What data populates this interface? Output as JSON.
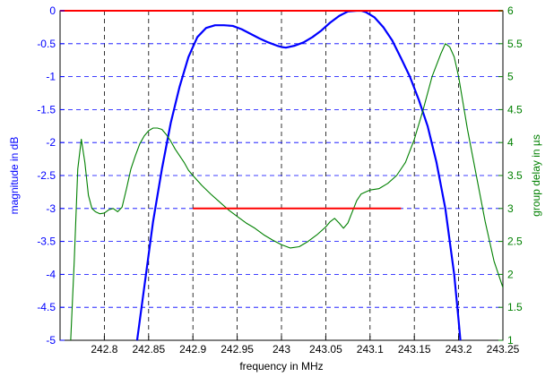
{
  "chart_data": {
    "type": "line",
    "title": "",
    "xlabel": "frequency in MHz",
    "ylabel_left": "magnitude in dB",
    "ylabel_right": "group delay in µs",
    "xlim": [
      242.75,
      243.25
    ],
    "ylim_left": [
      -5,
      0
    ],
    "ylim_right": [
      1,
      6
    ],
    "x_ticks": [
      242.8,
      242.85,
      242.9,
      242.95,
      243,
      243.05,
      243.1,
      243.15,
      243.2,
      243.25
    ],
    "x_tick_labels": [
      "242.8",
      "242.85",
      "242.9",
      "242.95",
      "243",
      "243.05",
      "243.1",
      "243.15",
      "243.2",
      "243.25"
    ],
    "y_left_ticks": [
      0,
      -0.5,
      -1,
      -1.5,
      -2,
      -2.5,
      -3,
      -3.5,
      -4,
      -4.5,
      -5
    ],
    "y_left_tick_labels": [
      "0",
      "-0.5",
      "-1",
      "-1.5",
      "-2",
      "-2.5",
      "-3",
      "-3.5",
      "-4",
      "-4.5",
      "-5"
    ],
    "y_right_ticks": [
      6,
      5.5,
      5,
      4.5,
      4,
      3.5,
      3,
      2.5,
      2,
      1.5,
      1
    ],
    "y_right_tick_labels": [
      "6",
      "5.5",
      "5",
      "4.5",
      "4",
      "3.5",
      "3",
      "2.5",
      "2",
      "1.5",
      "1"
    ],
    "grid": true,
    "colors": {
      "magnitude": "#0000ff",
      "group_delay": "#008000",
      "reference": "#ff0000",
      "grid_x": "#000000",
      "grid_y": "#0000ff"
    },
    "series": [
      {
        "axis": "left",
        "color": "#0000ff",
        "x": [
          242.837,
          242.845,
          242.855,
          242.865,
          242.875,
          242.885,
          242.895,
          242.905,
          242.915,
          242.925,
          242.935,
          242.945,
          242.955,
          242.965,
          242.975,
          242.985,
          242.995,
          243.0,
          243.005,
          243.015,
          243.025,
          243.035,
          243.045,
          243.055,
          243.065,
          243.075,
          243.085,
          243.09,
          243.095,
          243.105,
          243.115,
          243.125,
          243.135,
          243.145,
          243.155,
          243.165,
          243.175,
          243.185,
          243.19,
          243.195,
          243.2,
          243.202
        ],
        "y": [
          -5.0,
          -4.2,
          -3.2,
          -2.4,
          -1.7,
          -1.15,
          -0.7,
          -0.4,
          -0.26,
          -0.22,
          -0.22,
          -0.23,
          -0.28,
          -0.35,
          -0.42,
          -0.48,
          -0.53,
          -0.55,
          -0.56,
          -0.53,
          -0.48,
          -0.4,
          -0.3,
          -0.18,
          -0.08,
          -0.01,
          0.0,
          0.0,
          -0.02,
          -0.1,
          -0.25,
          -0.45,
          -0.72,
          -1.0,
          -1.35,
          -1.75,
          -2.3,
          -3.0,
          -3.5,
          -4.0,
          -4.7,
          -5.0
        ]
      },
      {
        "axis": "right",
        "color": "#008000",
        "x": [
          242.762,
          242.766,
          242.77,
          242.774,
          242.778,
          242.782,
          242.786,
          242.79,
          242.795,
          242.8,
          242.805,
          242.81,
          242.815,
          242.82,
          242.825,
          242.83,
          242.835,
          242.84,
          242.845,
          242.85,
          242.855,
          242.86,
          242.865,
          242.87,
          242.875,
          242.88,
          242.885,
          242.89,
          242.895,
          242.9,
          242.91,
          242.92,
          242.93,
          242.94,
          242.95,
          242.96,
          242.97,
          242.98,
          242.99,
          243.0,
          243.01,
          243.02,
          243.03,
          243.04,
          243.05,
          243.055,
          243.06,
          243.065,
          243.07,
          243.075,
          243.08,
          243.085,
          243.09,
          243.095,
          243.1,
          243.11,
          243.12,
          243.13,
          243.14,
          243.15,
          243.16,
          243.17,
          243.18,
          243.185,
          243.19,
          243.195,
          243.2,
          243.205,
          243.21,
          243.22,
          243.23,
          243.24,
          243.25
        ],
        "y": [
          1.0,
          2.2,
          3.6,
          4.05,
          3.7,
          3.2,
          3.0,
          2.95,
          2.92,
          2.93,
          2.98,
          3.0,
          2.95,
          3.02,
          3.3,
          3.6,
          3.8,
          3.98,
          4.1,
          4.18,
          4.22,
          4.22,
          4.2,
          4.12,
          4.02,
          3.9,
          3.8,
          3.7,
          3.58,
          3.5,
          3.35,
          3.22,
          3.1,
          2.98,
          2.88,
          2.78,
          2.7,
          2.6,
          2.52,
          2.45,
          2.4,
          2.42,
          2.5,
          2.6,
          2.72,
          2.8,
          2.85,
          2.78,
          2.7,
          2.78,
          2.95,
          3.12,
          3.22,
          3.25,
          3.28,
          3.3,
          3.38,
          3.5,
          3.7,
          4.05,
          4.5,
          5.0,
          5.35,
          5.5,
          5.45,
          5.3,
          5.0,
          4.6,
          4.2,
          3.5,
          2.8,
          2.2,
          1.8
        ]
      },
      {
        "axis": "left",
        "color": "#ff0000",
        "x": [
          242.75,
          243.25
        ],
        "y": [
          0,
          0
        ]
      },
      {
        "axis": "left",
        "color": "#ff0000",
        "x": [
          242.9,
          243.135
        ],
        "y": [
          -3,
          -3
        ]
      }
    ]
  }
}
